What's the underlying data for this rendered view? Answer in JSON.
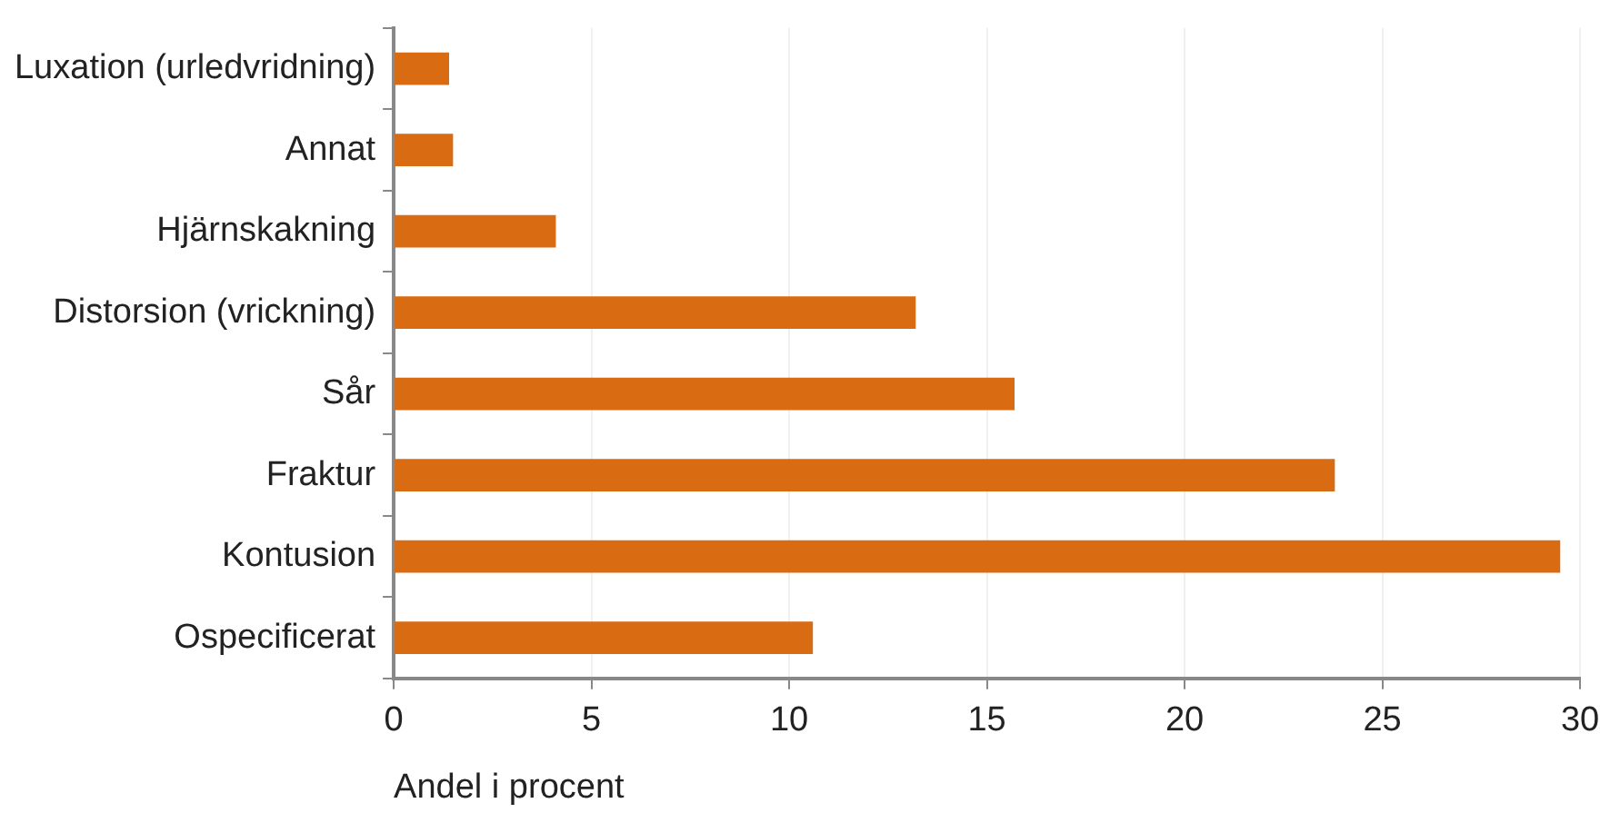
{
  "chart_data": {
    "type": "bar",
    "orientation": "horizontal",
    "xlabel": "Andel i procent",
    "categories": [
      "Luxation (urledvridning)",
      "Annat",
      "Hjärnskakning",
      "Distorsion (vrickning)",
      "Sår",
      "Fraktur",
      "Kontusion",
      "Ospecificerat"
    ],
    "values": [
      1.4,
      1.5,
      4.1,
      13.2,
      15.7,
      23.8,
      29.5,
      10.6
    ],
    "color": "#d96b13",
    "xlim": [
      0,
      30
    ],
    "xticks": [
      0,
      5,
      10,
      15,
      20,
      25,
      30
    ],
    "grid": "x",
    "legend": false
  }
}
